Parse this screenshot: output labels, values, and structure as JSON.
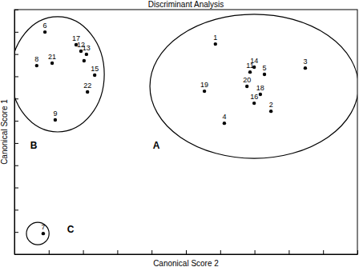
{
  "chart_data": {
    "type": "scatter",
    "title": "Discriminant Analysis",
    "x_label": "Canonical Score 2",
    "y_label": "Canonical Score 1",
    "xlim": [
      -4,
      6
    ],
    "ylim": [
      -7,
      4
    ],
    "xticks": [
      -4,
      -3,
      -2,
      -1,
      0,
      1,
      2,
      3,
      4,
      5,
      6
    ],
    "yticks": [
      -7,
      -6,
      -5,
      -4,
      -3,
      -2,
      -1,
      0,
      1,
      2,
      3,
      4
    ],
    "tick_labels": false,
    "series": [
      {
        "color": "#000000",
        "marker": "circle",
        "point_labels": [
          "1",
          "2",
          "3",
          "4",
          "5",
          "6",
          "7",
          "8",
          "9",
          null,
          "11",
          "12",
          "13",
          "14",
          "15",
          "16",
          "17",
          "18",
          "19",
          "20",
          "21",
          "22"
        ],
        "x": [
          1.86,
          3.48,
          4.48,
          2.12,
          3.29,
          -3.11,
          -3.16,
          -3.35,
          -2.81,
          -1.97,
          2.87,
          -2.06,
          -1.9,
          2.99,
          -1.66,
          2.99,
          -2.2,
          3.17,
          1.54,
          2.78,
          -2.9,
          -1.87
        ],
        "values": [
          2.45,
          -0.57,
          1.37,
          -1.11,
          1.09,
          2.99,
          -6.07,
          1.48,
          -0.96,
          1.7,
          1.19,
          2.13,
          1.99,
          1.41,
          1.05,
          -0.21,
          2.42,
          0.19,
          0.33,
          0.55,
          1.59,
          0.3
        ]
      }
    ],
    "groups": [
      {
        "label": "A",
        "center": [
          2.99,
          0.55
        ],
        "radii": [
          3.04,
          3.24
        ],
        "label_x": 0.14,
        "label_y": -2.15
      },
      {
        "label": "B",
        "center": [
          -2.74,
          1.09
        ],
        "radii": [
          1.36,
          2.59
        ],
        "label_x": -3.44,
        "label_y": -2.15
      },
      {
        "label": "C",
        "center": [
          -3.32,
          -6.07
        ],
        "radii": [
          0.33,
          0.5
        ],
        "label_x": -2.36,
        "label_y": -5.93
      }
    ]
  }
}
